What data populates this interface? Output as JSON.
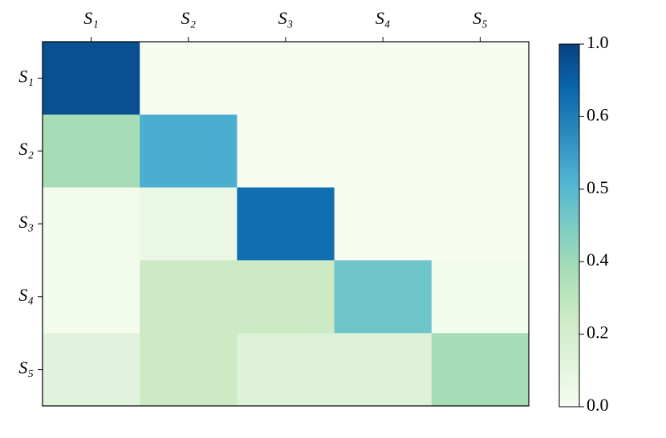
{
  "chart_data": {
    "type": "heatmap",
    "categories": [
      "S₁",
      "S₂",
      "S₃",
      "S₄",
      "S₅"
    ],
    "values": [
      [
        0.9,
        0,
        0,
        0,
        0
      ],
      [
        0.38,
        0.52,
        0,
        0,
        0
      ],
      [
        0.02,
        0.07,
        0.7,
        0,
        0
      ],
      [
        0.02,
        0.25,
        0.25,
        0.47,
        0.02
      ],
      [
        0.12,
        0.25,
        0.15,
        0.15,
        0.38
      ]
    ],
    "colormap": [
      "#f7fcf0",
      "#e0f3db",
      "#ccebc5",
      "#a8ddb5",
      "#7bccc4",
      "#4eb3d3",
      "#2b8cbe",
      "#0868ac",
      "#084081"
    ],
    "clim": [
      0,
      1
    ],
    "cticks": [
      {
        "value": 0,
        "label": "0.0"
      },
      0.2,
      0.4,
      0.5,
      0.6,
      {
        "value": 1,
        "label": "1.0"
      }
    ]
  }
}
